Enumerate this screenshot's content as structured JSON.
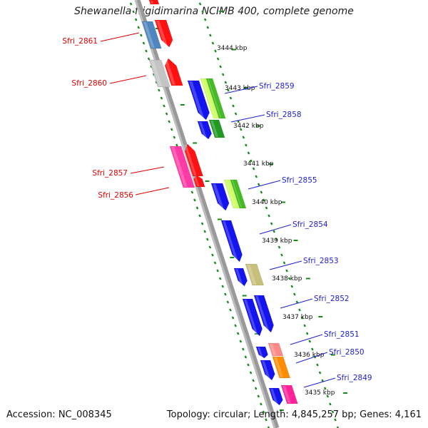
{
  "title": "Shewanella frigidimarina NCIMB 400, complete genome",
  "footer": {
    "accession": "Accession: NC_008345",
    "topology": "Topology: circular; Length: 4,845,257 bp; Genes: 4,161"
  },
  "colors": {
    "forward_label": "#dd0000",
    "reverse_label": "#1f1fcc",
    "backbone": "#888888",
    "ticks": "#1a8a1a"
  },
  "kbp_markers": [
    {
      "label": "3444 kbp"
    },
    {
      "label": "3443 kbp"
    },
    {
      "label": "3442 kbp"
    },
    {
      "label": "3441 kbp"
    },
    {
      "label": "3440 kbp"
    },
    {
      "label": "3439 kbp"
    },
    {
      "label": "3438 kbp"
    },
    {
      "label": "3437 kbp"
    },
    {
      "label": "3436 kbp"
    },
    {
      "label": "3435 kbp"
    }
  ],
  "genes": [
    {
      "label": "Sfri_2861",
      "strand": "forward"
    },
    {
      "label": "Sfri_2860",
      "strand": "forward"
    },
    {
      "label": "Sfri_2857",
      "strand": "forward"
    },
    {
      "label": "Sfri_2856",
      "strand": "forward"
    },
    {
      "label": "Sfri_2859",
      "strand": "reverse"
    },
    {
      "label": "Sfri_2858",
      "strand": "reverse"
    },
    {
      "label": "Sfri_2855",
      "strand": "reverse"
    },
    {
      "label": "Sfri_2854",
      "strand": "reverse"
    },
    {
      "label": "Sfri_2853",
      "strand": "reverse"
    },
    {
      "label": "Sfri_2852",
      "strand": "reverse"
    },
    {
      "label": "Sfri_2851",
      "strand": "reverse"
    },
    {
      "label": "Sfri_2850",
      "strand": "reverse"
    },
    {
      "label": "Sfri_2849",
      "strand": "reverse"
    }
  ]
}
